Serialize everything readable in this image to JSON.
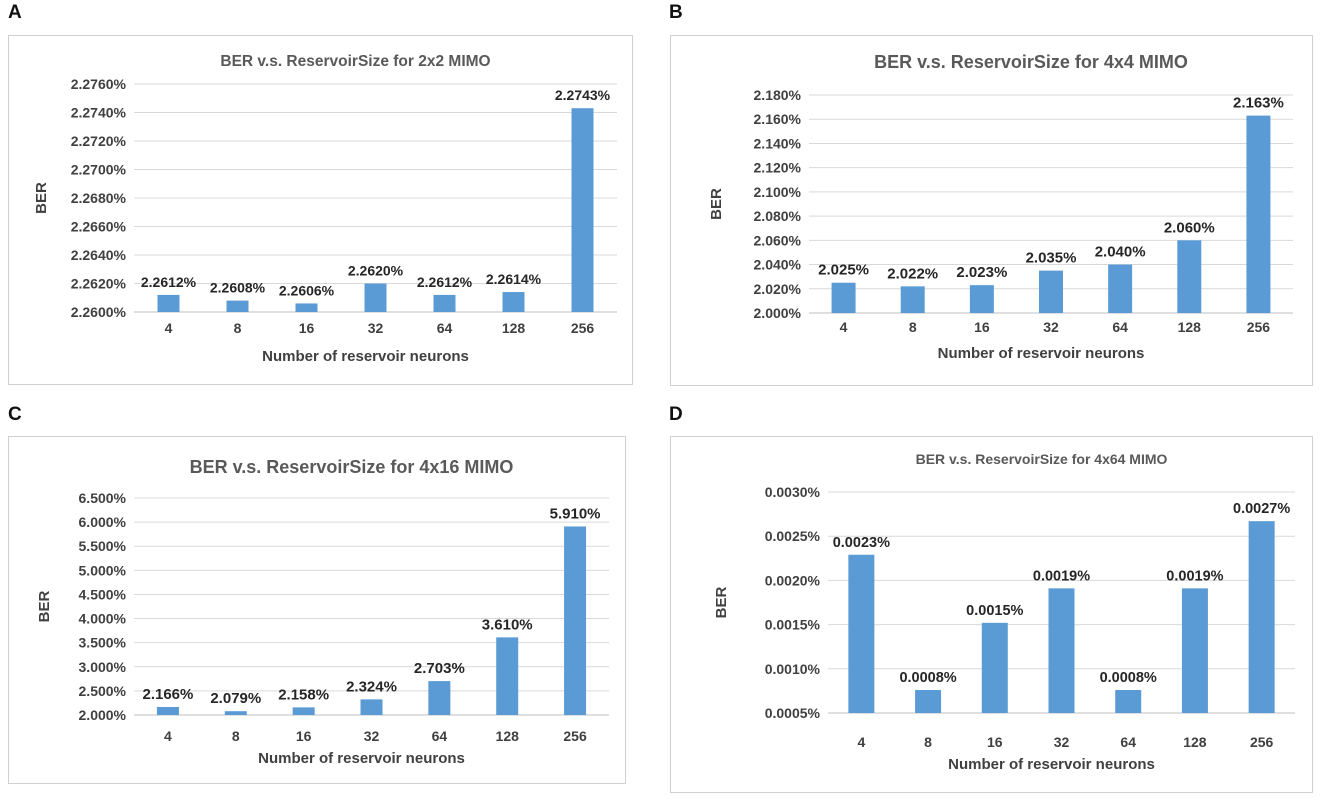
{
  "panels": [
    "A",
    "B",
    "C",
    "D"
  ],
  "chart_data": [
    {
      "type": "bar",
      "panel": "A",
      "title": "BER v.s. ReservoirSize for 2x2 MIMO",
      "xlabel": "Number of reservoir neurons",
      "ylabel": "BER",
      "categories": [
        "4",
        "8",
        "16",
        "32",
        "64",
        "128",
        "256"
      ],
      "values": [
        2.2612,
        2.2608,
        2.2606,
        2.262,
        2.2612,
        2.2614,
        2.2743
      ],
      "value_labels": [
        "2.2612%",
        "2.2608%",
        "2.2606%",
        "2.2620%",
        "2.2612%",
        "2.2614%",
        "2.2743%"
      ],
      "ylim": [
        2.26,
        2.276
      ],
      "yticks": [
        "2.2600%",
        "2.2620%",
        "2.2640%",
        "2.2660%",
        "2.2680%",
        "2.2700%",
        "2.2720%",
        "2.2740%",
        "2.2760%"
      ],
      "grid": true,
      "color": "#5b9bd5"
    },
    {
      "type": "bar",
      "panel": "B",
      "title": "BER v.s. ReservoirSize for 4x4 MIMO",
      "xlabel": "Number of reservoir neurons",
      "ylabel": "BER",
      "categories": [
        "4",
        "8",
        "16",
        "32",
        "64",
        "128",
        "256"
      ],
      "values": [
        2.025,
        2.022,
        2.023,
        2.035,
        2.04,
        2.06,
        2.163
      ],
      "value_labels": [
        "2.025%",
        "2.022%",
        "2.023%",
        "2.035%",
        "2.040%",
        "2.060%",
        "2.163%"
      ],
      "ylim": [
        2.0,
        2.18
      ],
      "yticks": [
        "2.000%",
        "2.020%",
        "2.040%",
        "2.060%",
        "2.080%",
        "2.100%",
        "2.120%",
        "2.140%",
        "2.160%",
        "2.180%"
      ],
      "grid": true,
      "color": "#5b9bd5"
    },
    {
      "type": "bar",
      "panel": "C",
      "title": "BER v.s. ReservoirSize for 4x16 MIMO",
      "xlabel": "Number of reservoir neurons",
      "ylabel": "BER",
      "categories": [
        "4",
        "8",
        "16",
        "32",
        "64",
        "128",
        "256"
      ],
      "values": [
        2.166,
        2.079,
        2.158,
        2.324,
        2.703,
        3.61,
        5.91
      ],
      "value_labels": [
        "2.166%",
        "2.079%",
        "2.158%",
        "2.324%",
        "2.703%",
        "3.610%",
        "5.910%"
      ],
      "ylim": [
        2.0,
        6.5
      ],
      "yticks": [
        "2.000%",
        "2.500%",
        "3.000%",
        "3.500%",
        "4.000%",
        "4.500%",
        "5.000%",
        "5.500%",
        "6.000%",
        "6.500%"
      ],
      "grid": true,
      "color": "#5b9bd5"
    },
    {
      "type": "bar",
      "panel": "D",
      "title": "BER v.s. ReservoirSize for 4x64 MIMO",
      "xlabel": "Number of reservoir neurons",
      "ylabel": "BER",
      "categories": [
        "4",
        "8",
        "16",
        "32",
        "64",
        "128",
        "256"
      ],
      "values": [
        0.00229,
        0.00076,
        0.00152,
        0.00191,
        0.00076,
        0.00191,
        0.00267
      ],
      "value_labels": [
        "0.0023%",
        "0.0008%",
        "0.0015%",
        "0.0019%",
        "0.0008%",
        "0.0019%",
        "0.0027%"
      ],
      "ylim": [
        0.0005,
        0.003
      ],
      "yticks": [
        "0.0005%",
        "0.0010%",
        "0.0015%",
        "0.0020%",
        "0.0025%",
        "0.0030%"
      ],
      "grid": true,
      "color": "#5b9bd5"
    }
  ]
}
